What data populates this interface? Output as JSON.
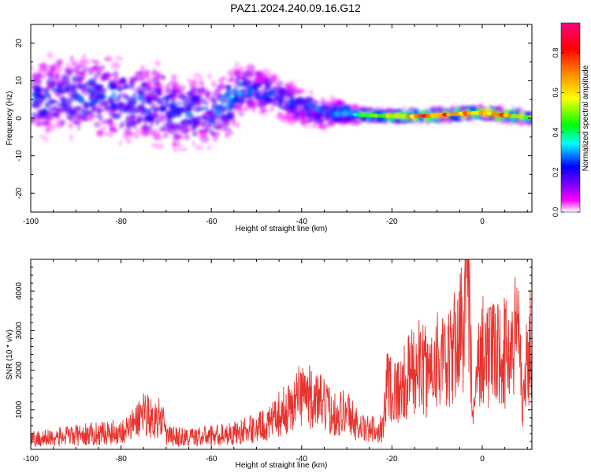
{
  "title": "PAZ1.2024.240.09.16.G12",
  "colors": {
    "snr_line": "#e8332e",
    "colorbar_stops": [
      "#ffffff",
      "#ff00ff",
      "#8000ff",
      "#0000ff",
      "#00ffff",
      "#00ff00",
      "#ffff00",
      "#ff8000",
      "#ff0000",
      "#ff0080"
    ]
  },
  "chart_data": [
    {
      "type": "heatmap",
      "title": "",
      "xlabel": "Height of straight line (km)",
      "ylabel": "Frequency (Hz)",
      "xlim": [
        -100,
        11
      ],
      "ylim": [
        -25,
        25
      ],
      "x_ticks": [
        -100,
        -80,
        -60,
        -40,
        -20,
        0
      ],
      "y_ticks": [
        -20,
        -10,
        0,
        10,
        20
      ],
      "x_tick_labels": [
        "-100",
        "-80",
        "-60",
        "-40",
        "-20",
        "0"
      ],
      "y_tick_labels": [
        "-20",
        "-10",
        "0",
        "10",
        "20"
      ],
      "colorbar": {
        "label": "Normalized spectral amplitude",
        "range": [
          0,
          0.95
        ],
        "ticks": [
          0.0,
          0.2,
          0.4,
          0.6,
          0.8
        ],
        "tick_labels": [
          "0.0",
          "0.2",
          "0.4",
          "0.6",
          "0.8"
        ]
      },
      "ridge": {
        "x": [
          -100,
          -90,
          -80,
          -70,
          -60,
          -55,
          -52,
          -48,
          -44,
          -40,
          -36,
          -32,
          -28,
          -24,
          -20,
          -15,
          -10,
          -5,
          0,
          5,
          11
        ],
        "freq": [
          5,
          6,
          5,
          3,
          1,
          5,
          8,
          7,
          5,
          3,
          1.5,
          1.5,
          1,
          0.7,
          0.6,
          0.5,
          0.8,
          1.2,
          1.5,
          0.8,
          0.2
        ],
        "spread": [
          8,
          8,
          8,
          8,
          7,
          6,
          5,
          4.5,
          4,
          3.5,
          3,
          2.2,
          1.5,
          1.2,
          1,
          1,
          1,
          1,
          1,
          1,
          1
        ],
        "amplitude": [
          0.22,
          0.25,
          0.26,
          0.25,
          0.24,
          0.32,
          0.26,
          0.22,
          0.24,
          0.26,
          0.3,
          0.34,
          0.42,
          0.5,
          0.62,
          0.78,
          0.85,
          0.8,
          0.72,
          0.82,
          0.5
        ]
      }
    },
    {
      "type": "line",
      "title": "",
      "xlabel": "Height of straight line (km)",
      "ylabel": "SNR (10 * v/v)",
      "xlim": [
        -100,
        11
      ],
      "ylim": [
        0,
        4800
      ],
      "x_ticks": [
        -100,
        -80,
        -60,
        -40,
        -20,
        0
      ],
      "y_ticks": [
        1000,
        2000,
        3000,
        4000
      ],
      "x_tick_labels": [
        "-100",
        "-80",
        "-60",
        "-40",
        "-20",
        "0"
      ],
      "y_tick_labels": [
        "1000",
        "2000",
        "3000",
        "4000"
      ],
      "series": [
        {
          "x": [
            -100,
            -95,
            -90,
            -85,
            -80,
            -78,
            -76,
            -75,
            -73,
            -71,
            -70,
            -65,
            -60,
            -55,
            -50,
            -47,
            -45,
            -42,
            -40,
            -38,
            -36,
            -34,
            -32,
            -30,
            -28,
            -26,
            -24,
            -22,
            -21,
            -20,
            -18,
            -16,
            -14,
            -12,
            -10,
            -8,
            -6,
            -4,
            -3,
            -2.5,
            -2,
            -1,
            0,
            2,
            4,
            6,
            8,
            8.5,
            9,
            10,
            11
          ],
          "y": [
            250,
            300,
            350,
            400,
            450,
            550,
            800,
            1000,
            750,
            800,
            350,
            300,
            350,
            400,
            550,
            650,
            900,
            1100,
            1500,
            1300,
            1200,
            1000,
            900,
            1000,
            650,
            500,
            500,
            550,
            1800,
            1500,
            1500,
            1900,
            2100,
            1900,
            2400,
            2000,
            2600,
            3300,
            4600,
            2200,
            600,
            2000,
            2700,
            2300,
            2500,
            2400,
            3200,
            2200,
            1200,
            2300,
            2800
          ]
        }
      ]
    }
  ]
}
